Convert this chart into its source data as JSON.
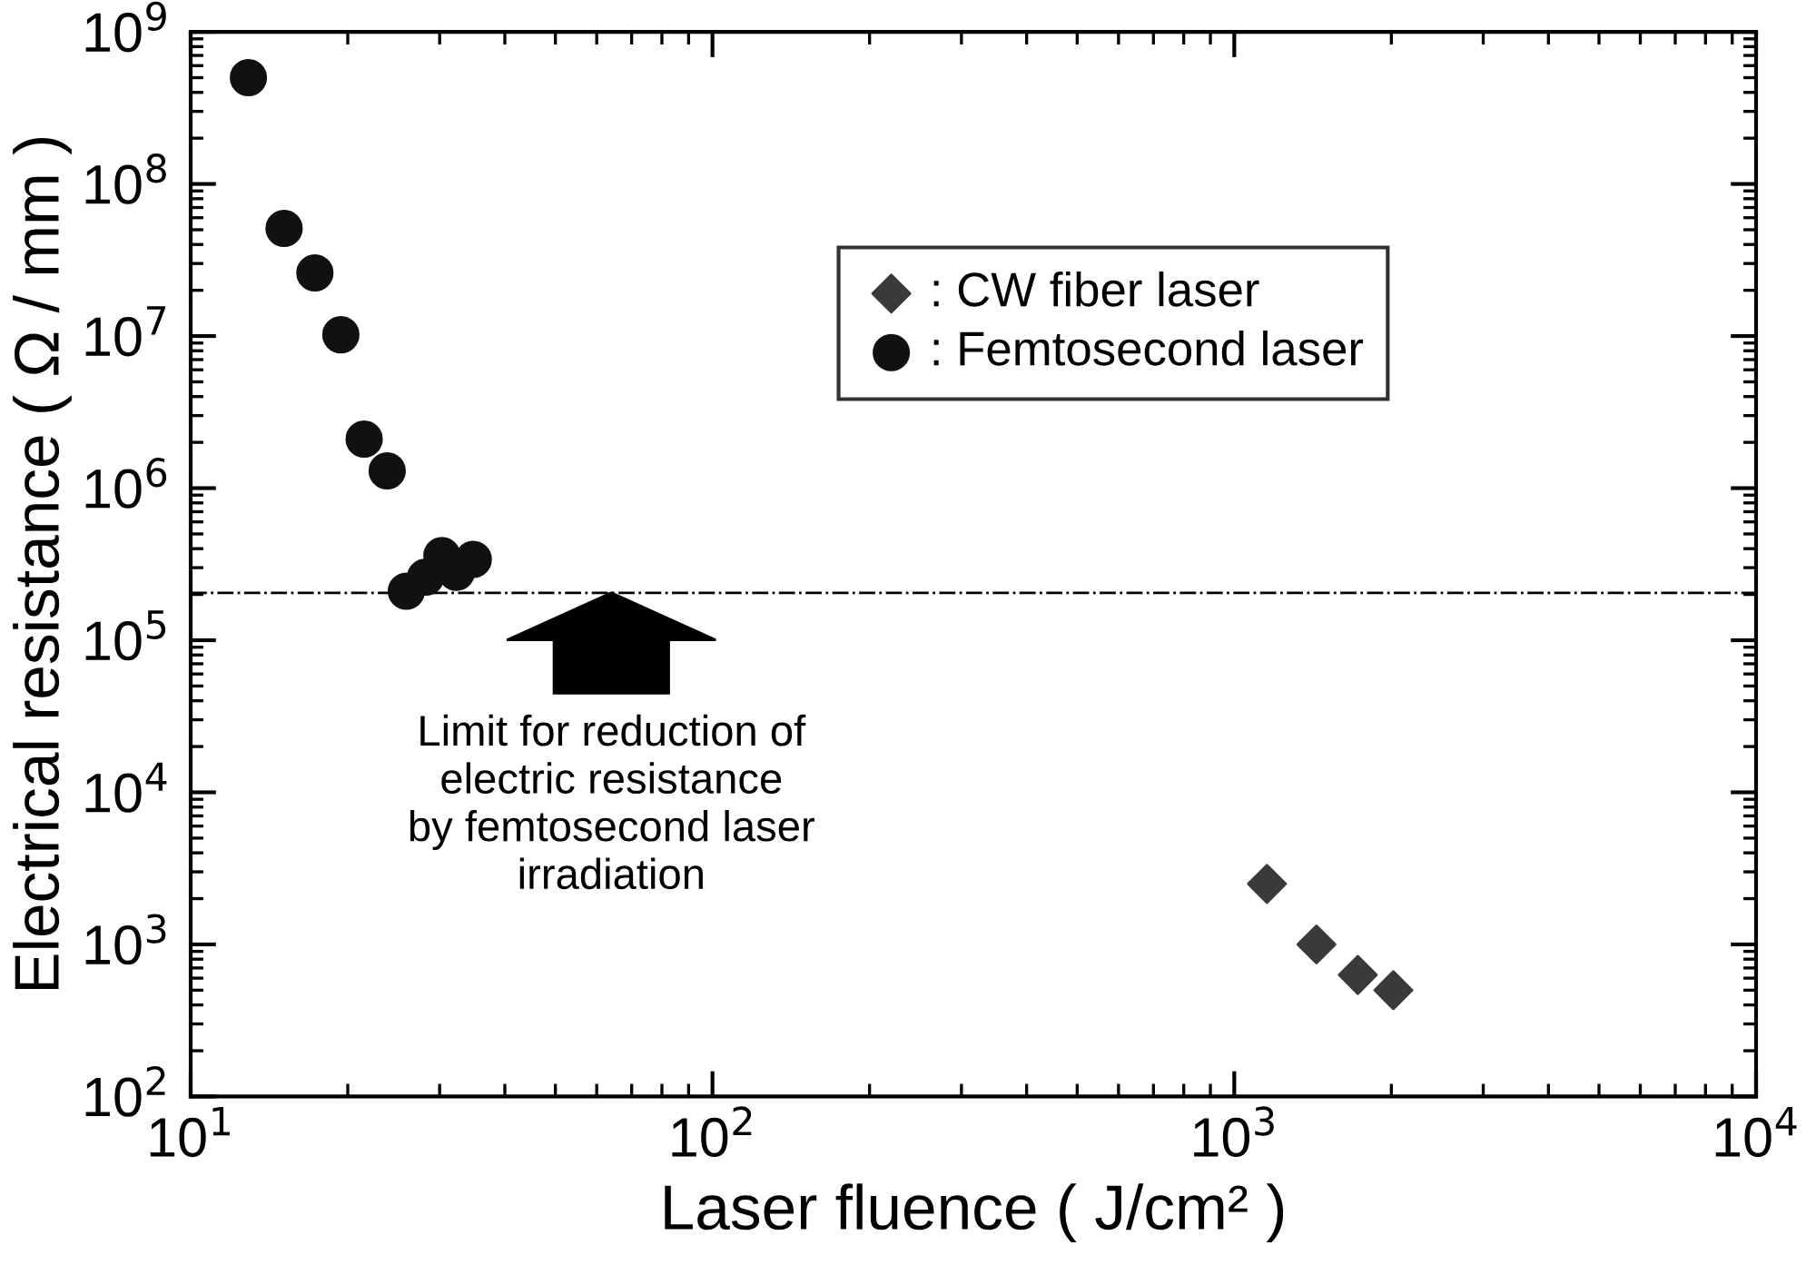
{
  "chart_data": {
    "type": "scatter",
    "xlabel": "Laser fluence ( J/cm² )",
    "ylabel": "Electrical resistance ( Ω / mm )",
    "log": "xy",
    "xlim": [
      10,
      10000
    ],
    "ylim": [
      100,
      1000000000
    ],
    "xticks": [
      {
        "value": 10,
        "label": "10$^{1}$"
      },
      {
        "value": 100,
        "label": "10$^{2}$"
      },
      {
        "value": 1000,
        "label": "10$^{3}$"
      },
      {
        "value": 10000,
        "label": "10$^{4}$"
      }
    ],
    "yticks": [
      {
        "value": 100,
        "label": "10$^{2}$"
      },
      {
        "value": 1000,
        "label": "10$^{3}$"
      },
      {
        "value": 10000,
        "label": "10$^{4}$"
      },
      {
        "value": 100000,
        "label": "10$^{5}$"
      },
      {
        "value": 1000000,
        "label": "10$^{6}$"
      },
      {
        "value": 10000000,
        "label": "10$^{7}$"
      },
      {
        "value": 100000000,
        "label": "10$^{8}$"
      },
      {
        "value": 1000000000,
        "label": "10$^{9}$"
      }
    ],
    "series": [
      {
        "name": ": CW fiber laser",
        "color": "#3a3a3a",
        "marker": "diamond",
        "x": [
          1155,
          1437,
          1725,
          2018
        ],
        "values": [
          2500,
          1000,
          630,
          500
        ]
      },
      {
        "name": ": Femtosecond laser",
        "color": "#111111",
        "marker": "circle",
        "x": [
          12.9,
          15.1,
          17.3,
          19.4,
          21.5,
          23.8,
          25.9,
          28.2,
          30.3,
          32.3,
          34.8
        ],
        "values": [
          500000000,
          51000000,
          26000000,
          10200000,
          2100000,
          1300000,
          210000,
          260000,
          360000,
          280000,
          340000
        ]
      }
    ],
    "ref_lines": [
      {
        "axis": "y",
        "value": 205000,
        "color": "#000000",
        "line_style": "dashdot"
      }
    ],
    "annotations": [
      {
        "text": "Limit for reduction of\nelectric resistance\nby femtosecond laser\nirradiation",
        "x": 64,
        "y": 205000
      }
    ],
    "legend": "top right",
    "grid": false
  }
}
